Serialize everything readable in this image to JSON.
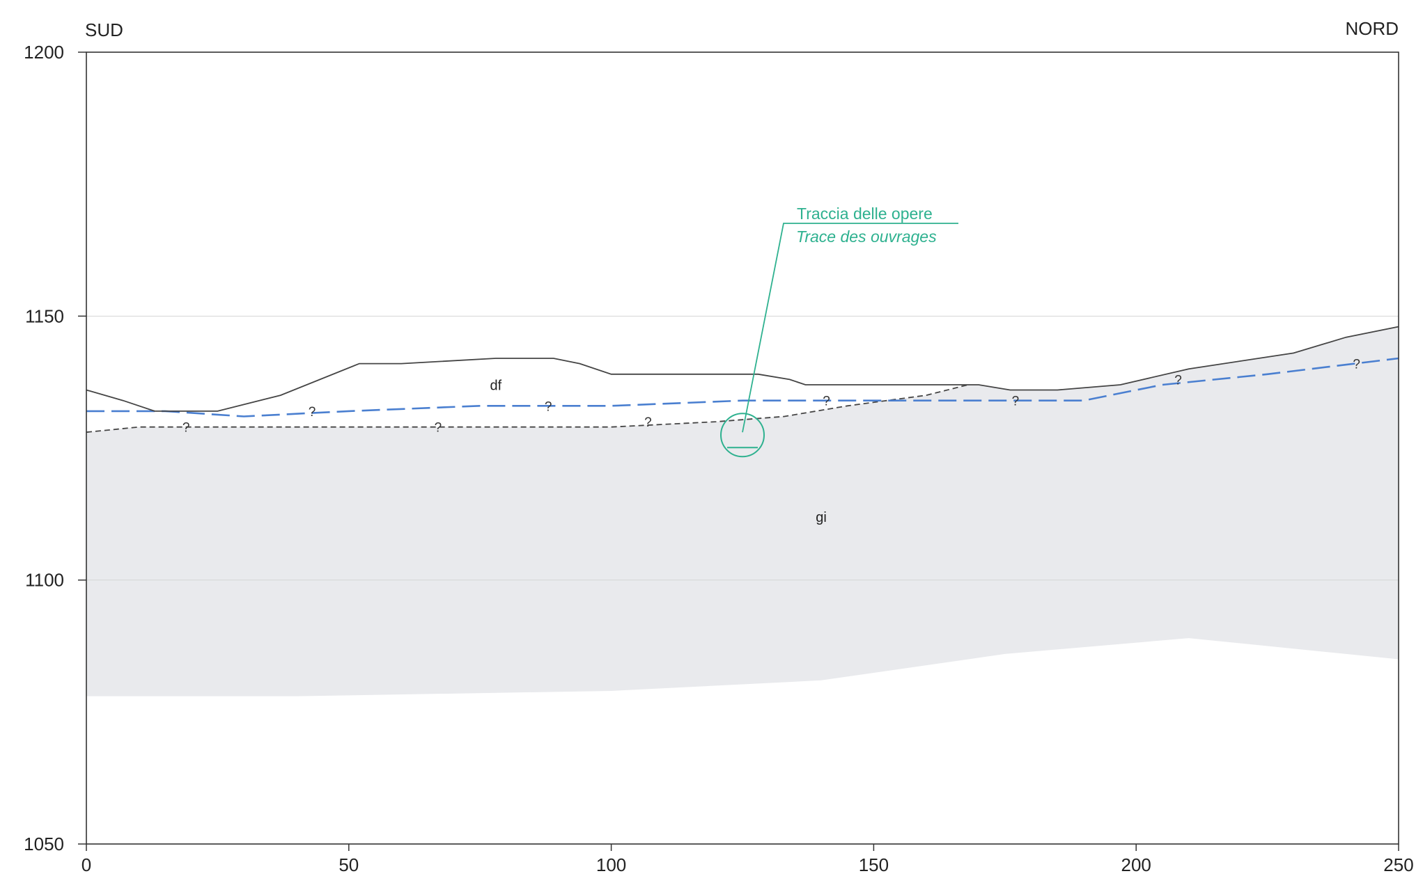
{
  "orientation": {
    "left": "SUD",
    "right": "NORD"
  },
  "x_axis": {
    "min": 0,
    "max": 250,
    "ticks": [
      0,
      50,
      100,
      150,
      200,
      250
    ]
  },
  "y_axis": {
    "min": 1050,
    "max": 1200,
    "ticks": [
      1050,
      1100,
      1150,
      1200
    ]
  },
  "colors": {
    "frame": "#333333",
    "terrain": "#444444",
    "contact": "#444444",
    "water_table": "#4a7fd0",
    "bedrock_fill": "#e9eaed",
    "callout": "#2eb18f",
    "gridline": "#d6d6d6"
  },
  "profiles": {
    "terrain": [
      [
        0,
        1136
      ],
      [
        7,
        1134
      ],
      [
        13,
        1132
      ],
      [
        25,
        1132
      ],
      [
        37,
        1135
      ],
      [
        52,
        1141
      ],
      [
        60,
        1141
      ],
      [
        78,
        1142
      ],
      [
        89,
        1142
      ],
      [
        94,
        1141
      ],
      [
        100,
        1139
      ],
      [
        128,
        1139
      ],
      [
        134,
        1138
      ],
      [
        137,
        1137
      ],
      [
        170,
        1137
      ],
      [
        176,
        1136
      ],
      [
        185,
        1136
      ],
      [
        197,
        1137
      ],
      [
        210,
        1140
      ],
      [
        230,
        1143
      ],
      [
        240,
        1146
      ],
      [
        250,
        1148
      ]
    ],
    "contact_df_gi": [
      [
        0,
        1128
      ],
      [
        10,
        1129
      ],
      [
        20,
        1129
      ],
      [
        35,
        1129
      ],
      [
        60,
        1129
      ],
      [
        85,
        1129
      ],
      [
        100,
        1129
      ],
      [
        120,
        1130
      ],
      [
        133,
        1131
      ],
      [
        145,
        1133
      ],
      [
        160,
        1135
      ],
      [
        168,
        1137
      ]
    ],
    "water_table": [
      [
        0,
        1132
      ],
      [
        15,
        1132
      ],
      [
        30,
        1131
      ],
      [
        50,
        1132
      ],
      [
        75,
        1133
      ],
      [
        100,
        1133
      ],
      [
        125,
        1134
      ],
      [
        150,
        1134
      ],
      [
        175,
        1134
      ],
      [
        190,
        1134
      ],
      [
        205,
        1137
      ],
      [
        225,
        1139
      ],
      [
        250,
        1142
      ]
    ],
    "bedrock_base": [
      [
        0,
        1078
      ],
      [
        40,
        1078
      ],
      [
        100,
        1079
      ],
      [
        140,
        1081
      ],
      [
        175,
        1086
      ],
      [
        210,
        1089
      ],
      [
        240,
        1086
      ],
      [
        250,
        1085
      ]
    ]
  },
  "uncertainty_marks": [
    {
      "label": "?",
      "x": 19,
      "y": 1129
    },
    {
      "label": "?",
      "x": 43,
      "y": 1132
    },
    {
      "label": "?",
      "x": 67,
      "y": 1129
    },
    {
      "label": "?",
      "x": 88,
      "y": 1133
    },
    {
      "label": "?",
      "x": 107,
      "y": 1130
    },
    {
      "label": "?",
      "x": 141,
      "y": 1134
    },
    {
      "label": "?",
      "x": 177,
      "y": 1134
    },
    {
      "label": "?",
      "x": 208,
      "y": 1138
    },
    {
      "label": "?",
      "x": 242,
      "y": 1141
    }
  ],
  "units": [
    {
      "code": "df",
      "x": 78,
      "y": 1136
    },
    {
      "code": "gi",
      "x": 140,
      "y": 1111
    }
  ],
  "works_trace": {
    "x": 125,
    "y": 1128,
    "label_it": "Traccia delle opere",
    "label_fr": "Trace des ouvrages"
  }
}
